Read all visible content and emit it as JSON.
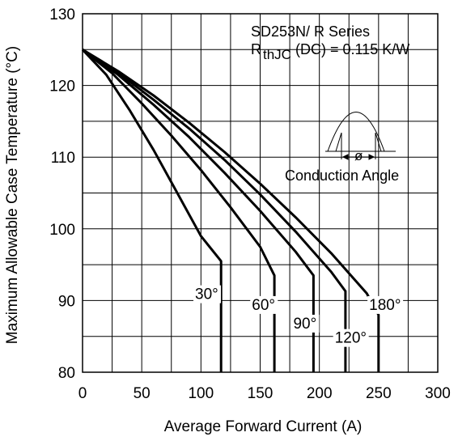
{
  "chart_data": {
    "type": "line",
    "xlabel": "Average Forward Current (A)",
    "ylabel": "Maximum Allowable Case Temperature (°C)",
    "xlim": [
      0,
      300
    ],
    "ylim": [
      80,
      130
    ],
    "xticks": [
      "0",
      "50",
      "100",
      "150",
      "200",
      "250",
      "300"
    ],
    "yticks": [
      "80",
      "90",
      "100",
      "110",
      "120",
      "130"
    ],
    "grid": true,
    "annotations": {
      "series_title": "SD253N/ R Series",
      "rth_symbol": "R",
      "rth_sub": "thJC",
      "rth_value": "(DC) = 0.115 K/W",
      "conduction_label": "Conduction Angle",
      "phi_symbol": "ø"
    },
    "series": [
      {
        "name": "30°",
        "x": [
          0,
          20,
          40,
          60,
          80,
          100,
          117,
          117
        ],
        "y": [
          125,
          121.5,
          116.5,
          111,
          105,
          99,
          95.5,
          80
        ]
      },
      {
        "name": "60°",
        "x": [
          0,
          25,
          50,
          75,
          100,
          125,
          150,
          162,
          162
        ],
        "y": [
          125,
          121.7,
          117.5,
          113,
          108.2,
          103,
          97.5,
          93.5,
          80
        ]
      },
      {
        "name": "90°",
        "x": [
          0,
          30,
          60,
          90,
          120,
          150,
          180,
          195,
          195
        ],
        "y": [
          125,
          121.5,
          117.3,
          112.8,
          107.8,
          102.5,
          96.8,
          93.5,
          80
        ]
      },
      {
        "name": "120°",
        "x": [
          0,
          30,
          60,
          90,
          120,
          150,
          180,
          210,
          222,
          222
        ],
        "y": [
          125,
          121.8,
          118,
          114,
          109.6,
          104.8,
          99.6,
          94,
          91.3,
          80
        ]
      },
      {
        "name": "180°",
        "x": [
          0,
          30,
          60,
          90,
          120,
          150,
          180,
          210,
          240,
          250,
          250
        ],
        "y": [
          125,
          122,
          118.6,
          114.8,
          110.7,
          106.3,
          101.6,
          96.6,
          91,
          88,
          80
        ]
      }
    ]
  }
}
